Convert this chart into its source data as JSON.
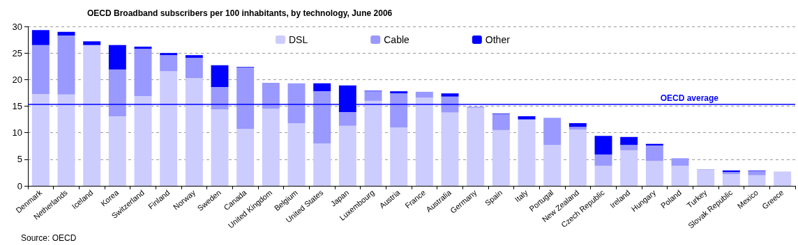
{
  "chart_data": {
    "type": "bar",
    "stacked": true,
    "title": "OECD Broadband subscribers per 100 inhabitants, by technology, June 2006",
    "categories": [
      "Denmark",
      "Netherlands",
      "Iceland",
      "Korea",
      "Switzerland",
      "Finland",
      "Norway",
      "Sweden",
      "Canada",
      "United Kingdom",
      "Belgium",
      "United States",
      "Japan",
      "Luxembourg",
      "Austria",
      "France",
      "Australia",
      "Germany",
      "Spain",
      "Italy",
      "Portugal",
      "New Zealand",
      "Czech Republic",
      "Ireland",
      "Hungary",
      "Poland",
      "Turkey",
      "Slovak Republic",
      "Mexico",
      "Greece"
    ],
    "series": [
      {
        "name": "DSL",
        "color": "#ccccff",
        "values": [
          17.3,
          17.2,
          26.5,
          13.1,
          16.9,
          21.6,
          20.3,
          14.4,
          10.7,
          14.5,
          11.8,
          8.0,
          11.3,
          16.0,
          11.0,
          16.6,
          13.8,
          14.7,
          10.5,
          12.5,
          7.7,
          10.6,
          3.8,
          6.7,
          4.7,
          3.8,
          3.0,
          2.2,
          2.0,
          2.7
        ]
      },
      {
        "name": "Cable",
        "color": "#9999ff",
        "values": [
          9.2,
          11.1,
          0,
          8.8,
          8.9,
          3.0,
          3.8,
          4.2,
          11.6,
          4.9,
          7.5,
          9.8,
          2.6,
          1.8,
          6.4,
          1.1,
          3.0,
          0.2,
          3.0,
          0,
          5.1,
          0.5,
          2.1,
          1.0,
          2.9,
          1.4,
          0.1,
          0.4,
          0.8,
          0
        ]
      },
      {
        "name": "Other",
        "color": "#0000ff",
        "values": [
          2.8,
          0.7,
          0.7,
          4.6,
          0.4,
          0.4,
          0.5,
          4.1,
          0.1,
          0,
          0,
          1.5,
          5.0,
          0.1,
          0.4,
          0,
          0.6,
          null,
          0.1,
          0.6,
          0,
          0.7,
          3.5,
          1.5,
          0.3,
          null,
          0,
          0.3,
          0.1,
          0
        ]
      }
    ],
    "ylim": [
      0,
      30
    ],
    "yticks": [
      0,
      5,
      10,
      15,
      20,
      25,
      30
    ],
    "grid": "y",
    "legend": "top",
    "ref_lines": [
      {
        "axis": "y",
        "value": 15.3,
        "label": "OECD average",
        "color": "#0000ff"
      }
    ],
    "annotations": [
      "Source: OECD"
    ]
  }
}
